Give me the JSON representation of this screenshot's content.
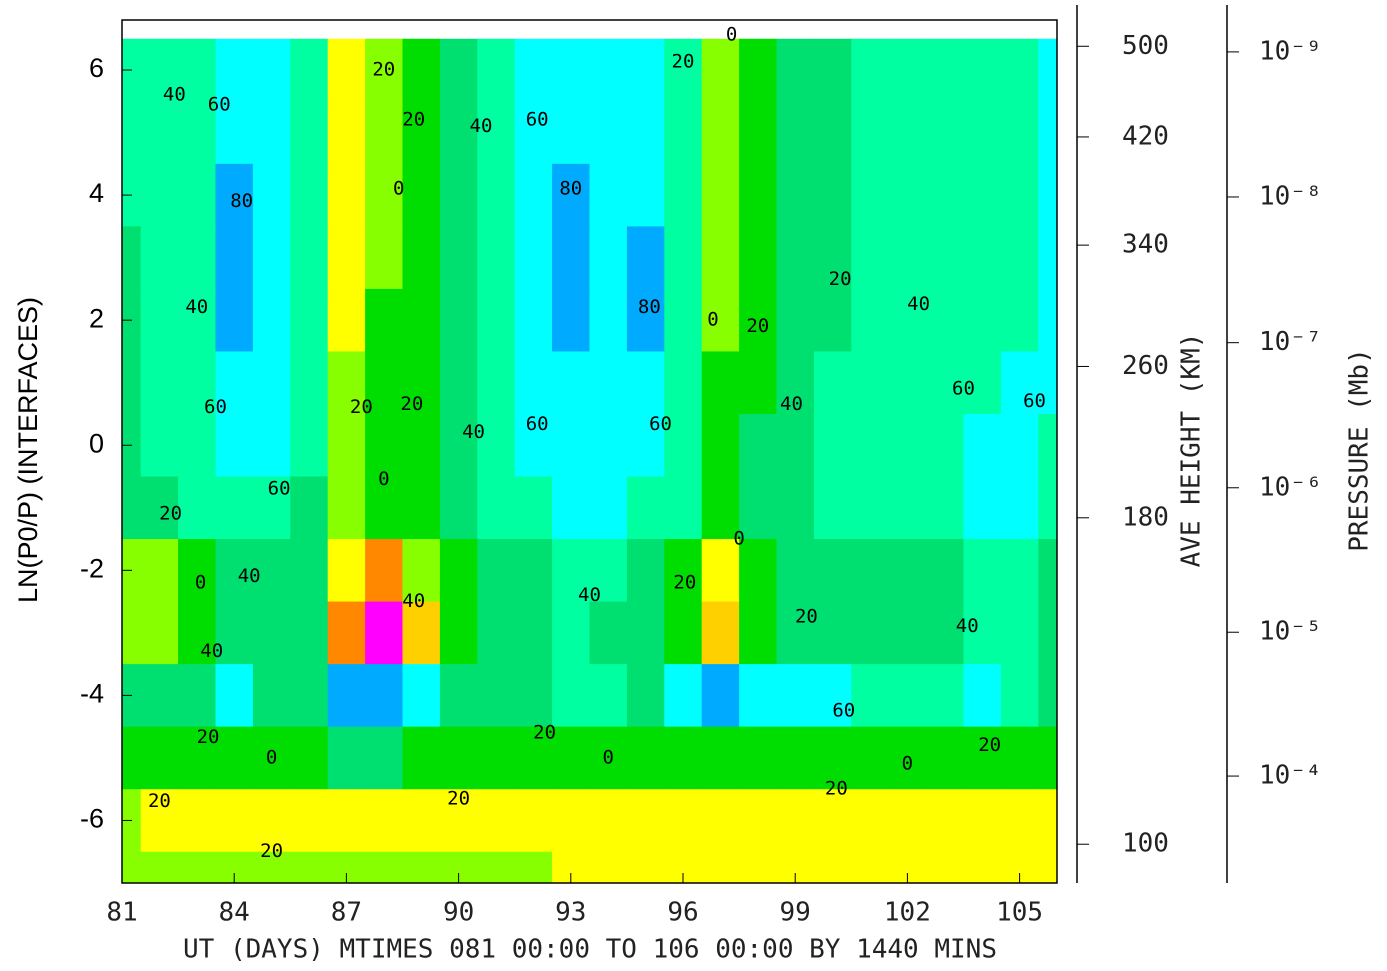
{
  "chart_data": {
    "type": "contour",
    "x_label": "UT (DAYS) MTIMES 081 00:00 TO 106 00:00 BY 1440 MINS",
    "y_label": "LN(P0/P) (INTERFACES)",
    "xlim": [
      81,
      106
    ],
    "ylim": [
      -7,
      6.8
    ],
    "xticks": [
      81,
      84,
      87,
      90,
      93,
      96,
      99,
      102,
      105
    ],
    "yticks": [
      -6,
      -4,
      -2,
      0,
      2,
      4,
      6
    ],
    "x": [
      81,
      82,
      83,
      84,
      85,
      86,
      87,
      88,
      89,
      90,
      91,
      92,
      93,
      94,
      95,
      96,
      97,
      98,
      99,
      100,
      101,
      102,
      103,
      104,
      105,
      106
    ],
    "y": [
      6,
      5,
      4,
      3,
      2,
      1,
      0,
      -1,
      -2,
      -3,
      -4,
      -5,
      -6,
      -7
    ],
    "z": [
      [
        -50,
        -50,
        -55,
        -70,
        -65,
        -45,
        25,
        5,
        -20,
        -35,
        -50,
        -65,
        -70,
        -70,
        -70,
        -45,
        5,
        -20,
        -30,
        -35,
        -45,
        -50,
        -50,
        -55,
        -55,
        -65
      ],
      [
        -50,
        -50,
        -55,
        -75,
        -65,
        -45,
        25,
        5,
        -20,
        -35,
        -50,
        -65,
        -70,
        -70,
        -70,
        -45,
        5,
        -20,
        -30,
        -35,
        -45,
        -50,
        -50,
        -55,
        -55,
        -65
      ],
      [
        -45,
        -50,
        -55,
        -85,
        -65,
        -45,
        25,
        0,
        -20,
        -35,
        -50,
        -65,
        -85,
        -70,
        -80,
        -45,
        5,
        -20,
        -30,
        -35,
        -45,
        -50,
        -50,
        -55,
        -55,
        -65
      ],
      [
        -40,
        -50,
        -55,
        -85,
        -65,
        -45,
        25,
        0,
        -20,
        -35,
        -50,
        -65,
        -85,
        -70,
        -85,
        -45,
        5,
        -20,
        -30,
        -35,
        -45,
        -50,
        -50,
        -55,
        -55,
        -65
      ],
      [
        -40,
        -50,
        -55,
        -85,
        -65,
        -45,
        20,
        -5,
        -20,
        -35,
        -50,
        -65,
        -85,
        -70,
        -85,
        -45,
        0,
        -20,
        -30,
        -35,
        -45,
        -50,
        -50,
        -55,
        -55,
        -65
      ],
      [
        -40,
        -50,
        -55,
        -80,
        -65,
        -45,
        15,
        -5,
        -20,
        -35,
        -50,
        -65,
        -80,
        -70,
        -75,
        -45,
        -5,
        -20,
        -35,
        -45,
        -50,
        -50,
        -50,
        -60,
        -65,
        -65
      ],
      [
        -30,
        -45,
        -55,
        -70,
        -65,
        -45,
        5,
        -10,
        -20,
        -35,
        -50,
        -65,
        -70,
        -70,
        -65,
        -45,
        -15,
        -25,
        -40,
        -55,
        -45,
        -50,
        -50,
        -65,
        -65,
        -60
      ],
      [
        -25,
        -35,
        -50,
        -60,
        -55,
        -40,
        0,
        -10,
        -20,
        -30,
        -45,
        -60,
        -65,
        -65,
        -60,
        -45,
        -15,
        -25,
        -35,
        -45,
        -45,
        -45,
        -50,
        -65,
        -65,
        -55
      ],
      [
        5,
        0,
        -15,
        -35,
        -40,
        -30,
        30,
        60,
        10,
        -15,
        -30,
        -40,
        -45,
        -45,
        -35,
        -10,
        20,
        -10,
        -25,
        -35,
        -40,
        -40,
        -40,
        -45,
        -45,
        -40
      ],
      [
        0,
        0,
        -20,
        -40,
        -35,
        -25,
        70,
        130,
        40,
        -10,
        -30,
        -40,
        -45,
        -40,
        -30,
        -5,
        40,
        -10,
        -25,
        -35,
        -40,
        -40,
        -40,
        -50,
        -45,
        -30
      ],
      [
        -35,
        -35,
        -40,
        -65,
        -40,
        -35,
        -90,
        -85,
        -65,
        -35,
        -30,
        -35,
        -50,
        -45,
        -35,
        -70,
        -95,
        -75,
        -65,
        -65,
        -60,
        -60,
        -50,
        -65,
        -60,
        -30
      ],
      [
        -15,
        -15,
        -15,
        -15,
        -18,
        -20,
        -25,
        -25,
        -20,
        -18,
        -15,
        -15,
        -15,
        -12,
        -12,
        -15,
        -20,
        -20,
        -18,
        -15,
        -15,
        -15,
        -15,
        -15,
        -15,
        -10
      ],
      [
        18,
        25,
        25,
        25,
        25,
        25,
        25,
        25,
        25,
        25,
        25,
        25,
        25,
        25,
        25,
        25,
        25,
        25,
        25,
        25,
        25,
        25,
        25,
        25,
        25,
        25
      ],
      [
        10,
        10,
        10,
        10,
        10,
        12,
        15,
        18,
        18,
        18,
        18,
        18,
        22,
        25,
        25,
        25,
        25,
        25,
        25,
        25,
        25,
        25,
        25,
        25,
        25,
        25
      ]
    ],
    "levels": [
      -100,
      -80,
      -60,
      -40,
      -20,
      0,
      20,
      40,
      60,
      80,
      100,
      120
    ],
    "colors": [
      "#0033ff",
      "#00aaff",
      "#00ffff",
      "#00ffa0",
      "#00e070",
      "#00dd00",
      "#88ff00",
      "#ffff00",
      "#ffd000",
      "#ff8800",
      "#ff4400",
      "#ee0000",
      "#ff00ff"
    ],
    "contour_labels": [
      {
        "text": "40",
        "x": 82.4,
        "y": 5.6
      },
      {
        "text": "60",
        "x": 83.6,
        "y": 5.44
      },
      {
        "text": "80",
        "x": 84.2,
        "y": 3.9
      },
      {
        "text": "40",
        "x": 83.0,
        "y": 2.2
      },
      {
        "text": "60",
        "x": 83.5,
        "y": 0.6
      },
      {
        "text": "60",
        "x": 85.2,
        "y": -0.7
      },
      {
        "text": "20",
        "x": 82.3,
        "y": -1.1
      },
      {
        "text": "0",
        "x": 83.1,
        "y": -2.2
      },
      {
        "text": "40",
        "x": 84.4,
        "y": -2.1
      },
      {
        "text": "40",
        "x": 83.4,
        "y": -3.3
      },
      {
        "text": "20",
        "x": 88.0,
        "y": 6.0
      },
      {
        "text": "20",
        "x": 88.8,
        "y": 5.2
      },
      {
        "text": "0",
        "x": 88.4,
        "y": 4.1
      },
      {
        "text": "20",
        "x": 87.4,
        "y": 0.6
      },
      {
        "text": "20",
        "x": 88.75,
        "y": 0.65
      },
      {
        "text": "0",
        "x": 88.0,
        "y": -0.55
      },
      {
        "text": "40",
        "x": 88.8,
        "y": -2.5
      },
      {
        "text": "40",
        "x": 90.6,
        "y": 5.1
      },
      {
        "text": "60",
        "x": 92.1,
        "y": 5.2
      },
      {
        "text": "40",
        "x": 90.4,
        "y": 0.2
      },
      {
        "text": "60",
        "x": 92.1,
        "y": 0.33
      },
      {
        "text": "80",
        "x": 93.0,
        "y": 4.1
      },
      {
        "text": "80",
        "x": 95.1,
        "y": 2.2
      },
      {
        "text": "60",
        "x": 95.4,
        "y": 0.33
      },
      {
        "text": "20",
        "x": 96.0,
        "y": 6.13
      },
      {
        "text": "0",
        "x": 97.3,
        "y": 6.56
      },
      {
        "text": "0",
        "x": 96.8,
        "y": 2.0
      },
      {
        "text": "20",
        "x": 98.0,
        "y": 1.9
      },
      {
        "text": "0",
        "x": 97.5,
        "y": -1.5
      },
      {
        "text": "20",
        "x": 96.05,
        "y": -2.2
      },
      {
        "text": "20",
        "x": 99.3,
        "y": -2.75
      },
      {
        "text": "40",
        "x": 93.5,
        "y": -2.4
      },
      {
        "text": "40",
        "x": 98.9,
        "y": 0.65
      },
      {
        "text": "20",
        "x": 100.2,
        "y": 2.65
      },
      {
        "text": "40",
        "x": 102.3,
        "y": 2.25
      },
      {
        "text": "60",
        "x": 103.5,
        "y": 0.9
      },
      {
        "text": "60",
        "x": 105.4,
        "y": 0.7
      },
      {
        "text": "40",
        "x": 103.6,
        "y": -2.9
      },
      {
        "text": "60",
        "x": 100.3,
        "y": -4.25
      },
      {
        "text": "20",
        "x": 83.3,
        "y": -4.67
      },
      {
        "text": "20",
        "x": 92.3,
        "y": -4.6
      },
      {
        "text": "20",
        "x": 104.2,
        "y": -4.8
      },
      {
        "text": "0",
        "x": 85.0,
        "y": -5.0
      },
      {
        "text": "0",
        "x": 94.0,
        "y": -5.0
      },
      {
        "text": "0",
        "x": 102.0,
        "y": -5.1
      },
      {
        "text": "20",
        "x": 82.0,
        "y": -5.7
      },
      {
        "text": "20",
        "x": 90.0,
        "y": -5.66
      },
      {
        "text": "20",
        "x": 100.1,
        "y": -5.5
      },
      {
        "text": "20",
        "x": 85.0,
        "y": -6.5
      }
    ],
    "height_axis": {
      "label": "AVE HEIGHT (KM)",
      "ticks": [
        {
          "value": 100,
          "at": -6.38
        },
        {
          "value": 180,
          "at": -1.16
        },
        {
          "value": 260,
          "at": 1.26
        },
        {
          "value": 340,
          "at": 3.2
        },
        {
          "value": 420,
          "at": 4.93
        },
        {
          "value": 500,
          "at": 6.38
        }
      ]
    },
    "pressure_axis": {
      "label": "PRESSURE (Mb)",
      "ticks": [
        {
          "value": 1e-09,
          "label": "10⁻⁹",
          "at": 6.29
        },
        {
          "value": 1e-08,
          "label": "10⁻⁸",
          "at": 3.97
        },
        {
          "value": 1e-07,
          "label": "10⁻⁷",
          "at": 1.64
        },
        {
          "value": 1e-06,
          "label": "10⁻⁶",
          "at": -0.68
        },
        {
          "value": 1e-05,
          "label": "10⁻⁵",
          "at": -2.99
        },
        {
          "value": 0.0001,
          "label": "10⁻⁴",
          "at": -5.29
        }
      ]
    }
  }
}
